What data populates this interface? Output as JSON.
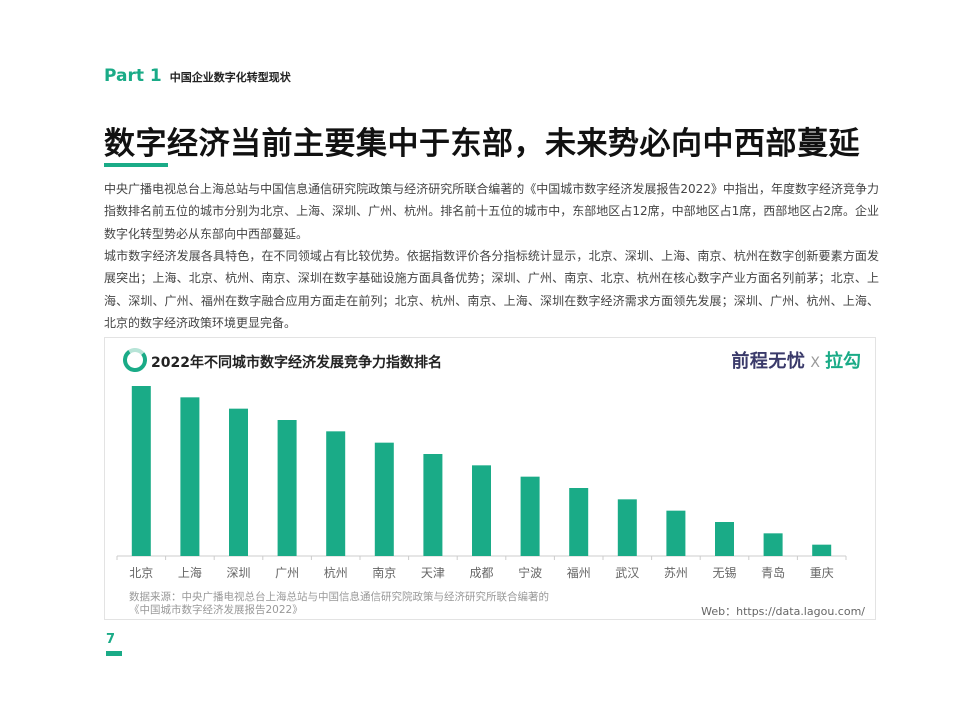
{
  "header": {
    "part_label": "Part 1",
    "part_title": "中国企业数字化转型现状"
  },
  "page_title": "数字经济当前主要集中于东部，未来势必向中西部蔓延",
  "paragraphs": [
    "中央广播电视总台上海总站与中国信息通信研究院政策与经济研究所联合编著的《中国城市数字经济发展报告2022》中指出，年度数字经济竞争力指数排名前五位的城市分别为北京、上海、深圳、广州、杭州。排名前十五位的城市中，东部地区占12席，中部地区占1席，西部地区占2席。企业数字化转型势必从东部向中西部蔓延。",
    "城市数字经济发展各具特色，在不同领域占有比较优势。依据指数评价各分指标统计显示，北京、深圳、上海、南京、杭州在数字创新要素方面发展突出；上海、北京、杭州、南京、深圳在数字基础设施方面具备优势；深圳、广州、南京、北京、杭州在核心数字产业方面名列前茅；北京、上海、深圳、广州、福州在数字融合应用方面走在前列；北京、杭州、南京、上海、深圳在数字经济需求方面领先发展；深圳、广州、杭州、上海、北京的数字经济政策环境更显完备。"
  ],
  "chart": {
    "title": "2022年不同城市数字经济发展竞争力指数排名",
    "brand_left": "前程无忧",
    "brand_sep": "X",
    "brand_right": "拉勾",
    "source_line1": "数据来源：中央广播电视总台上海总站与中国信息通信研究院政策与经济研究所联合编著的",
    "source_line2": "《中国城市数字经济发展报告2022》",
    "web": "Web：https://data.lagou.com/"
  },
  "chart_data": {
    "type": "bar",
    "title": "2022年不同城市数字经济发展竞争力指数排名",
    "categories": [
      "北京",
      "上海",
      "深圳",
      "广州",
      "杭州",
      "南京",
      "天津",
      "成都",
      "宁波",
      "福州",
      "武汉",
      "苏州",
      "无锡",
      "青岛",
      "重庆"
    ],
    "values": [
      15,
      14,
      13,
      12,
      11,
      10,
      9,
      8,
      7,
      6,
      5,
      4,
      3,
      2,
      1
    ],
    "ylim": [
      0,
      15
    ],
    "grid": false,
    "bar_color": "#1aab87",
    "axis_color": "#cccccc"
  },
  "page_number": "7",
  "colors": {
    "accent": "#1aab87"
  }
}
